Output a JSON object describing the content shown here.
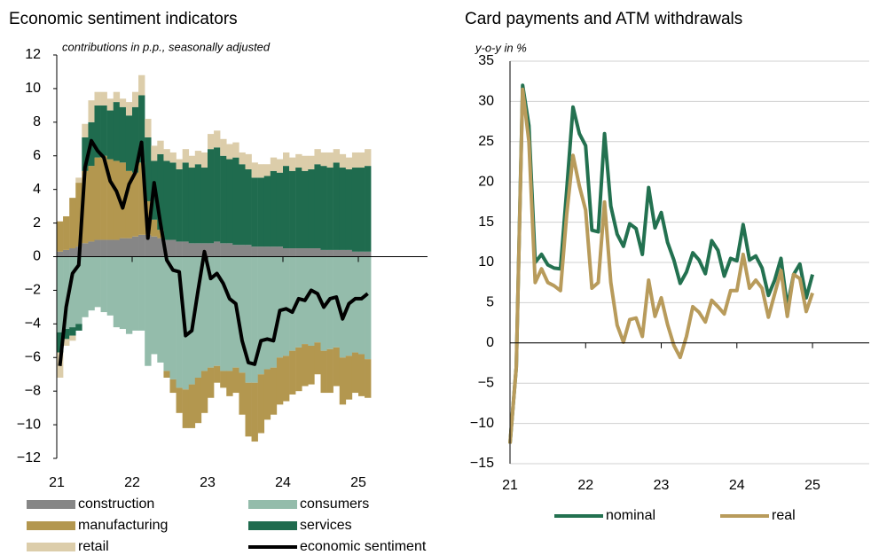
{
  "chart_data": [
    {
      "type": "bar",
      "stacked": true,
      "title": "Economic sentiment indicators",
      "subtitle": "contributions in p.p., seasonally adjusted",
      "x": [
        21,
        21.083,
        21.167,
        21.25,
        21.333,
        21.417,
        21.5,
        21.583,
        21.667,
        21.75,
        21.833,
        21.917,
        22,
        22.083,
        22.167,
        22.25,
        22.333,
        22.417,
        22.5,
        22.583,
        22.667,
        22.75,
        22.833,
        22.917,
        23,
        23.083,
        23.167,
        23.25,
        23.333,
        23.417,
        23.5,
        23.583,
        23.667,
        23.75,
        23.833,
        23.917,
        24,
        24.083,
        24.167,
        24.25,
        24.333,
        24.417,
        24.5,
        24.583,
        24.667,
        24.75,
        24.833,
        24.917,
        25,
        25.083
      ],
      "xlim": [
        21,
        26
      ],
      "xticks": [
        21,
        22,
        23,
        24,
        25
      ],
      "ylim": [
        -12,
        12
      ],
      "yticks": [
        {
          "value": -12,
          "label": "−12"
        },
        {
          "value": -10,
          "label": "−10"
        },
        {
          "value": -8,
          "label": "−8"
        },
        {
          "value": -6,
          "label": "−6"
        },
        {
          "value": -4,
          "label": "−4"
        },
        {
          "value": -2,
          "label": "−2"
        },
        0,
        2,
        4,
        6,
        8,
        10,
        12
      ],
      "legend": "bottom",
      "series": [
        {
          "name": "construction",
          "color": "#868686",
          "values": [
            0.3,
            0.4,
            0.5,
            0.6,
            0.8,
            0.9,
            1.0,
            1.0,
            1.0,
            1.0,
            1.1,
            1.1,
            1.2,
            1.3,
            1.3,
            1.2,
            1.1,
            1.0,
            1.0,
            0.9,
            0.9,
            0.8,
            0.8,
            0.8,
            0.8,
            0.9,
            0.8,
            0.8,
            0.7,
            0.7,
            0.7,
            0.6,
            0.6,
            0.6,
            0.6,
            0.6,
            0.5,
            0.5,
            0.5,
            0.5,
            0.5,
            0.5,
            0.4,
            0.4,
            0.4,
            0.4,
            0.4,
            0.3,
            0.3,
            0.3
          ]
        },
        {
          "name": "consumers",
          "color": "#94bcab",
          "values": [
            -4.5,
            -4.3,
            -4.2,
            -4.0,
            -3.6,
            -3.2,
            -3.0,
            -3.3,
            -3.5,
            -4.2,
            -4.3,
            -4.6,
            -4.4,
            -4.4,
            -6.5,
            -5.8,
            -6.3,
            -6.8,
            -7.3,
            -7.8,
            -7.9,
            -7.6,
            -7.2,
            -6.8,
            -6.6,
            -6.5,
            -6.8,
            -6.8,
            -6.6,
            -6.9,
            -7.5,
            -7.5,
            -7.0,
            -6.7,
            -6.6,
            -6.0,
            -5.9,
            -5.6,
            -5.4,
            -5.2,
            -5.3,
            -5.1,
            -5.6,
            -5.5,
            -5.4,
            -6.0,
            -5.9,
            -5.7,
            -5.8,
            -6.1
          ]
        },
        {
          "name": "manufacturing",
          "color": "#b3974f",
          "values": [
            1.8,
            2.0,
            3.0,
            3.8,
            4.3,
            4.5,
            4.9,
            5.0,
            4.8,
            4.7,
            4.5,
            4.0,
            3.8,
            4.3,
            2.0,
            1.0,
            0.5,
            -0.4,
            -0.8,
            -1.5,
            -2.3,
            -2.6,
            -2.7,
            -2.5,
            -1.8,
            -1.0,
            -1.0,
            -1.5,
            -1.5,
            -2.5,
            -3.2,
            -3.5,
            -3.5,
            -3.0,
            -2.8,
            -2.8,
            -2.7,
            -2.6,
            -2.6,
            -2.5,
            -2.3,
            -1.9,
            -2.5,
            -2.6,
            -2.3,
            -2.8,
            -2.6,
            -2.4,
            -2.5,
            -2.3
          ]
        },
        {
          "name": "services",
          "color": "#1f6b4e",
          "values": [
            -1.2,
            -0.6,
            -0.5,
            -0.4,
            2.0,
            2.6,
            3.1,
            3.0,
            2.9,
            3.5,
            3.3,
            3.3,
            3.9,
            4.0,
            3.8,
            3.5,
            4.5,
            4.7,
            4.6,
            4.3,
            4.7,
            4.5,
            4.7,
            4.5,
            5.6,
            5.6,
            5.2,
            5.0,
            5.2,
            4.8,
            4.5,
            4.1,
            4.1,
            4.2,
            4.5,
            4.4,
            4.9,
            4.6,
            4.8,
            4.6,
            4.7,
            5.0,
            5.0,
            4.9,
            5.2,
            4.9,
            4.8,
            5.0,
            5.0,
            5.1
          ]
        },
        {
          "name": "retail",
          "color": "#dccdaa",
          "values": [
            -1.5,
            -0.4,
            -0.3,
            0.3,
            0.8,
            1.3,
            0.8,
            0.8,
            0.7,
            0.6,
            0.5,
            0.8,
            0.9,
            1.2,
            1.1,
            0.9,
            0.8,
            0.7,
            0.6,
            0.6,
            0.8,
            0.7,
            0.8,
            0.9,
            0.9,
            1.0,
            1.0,
            0.9,
            0.9,
            0.7,
            0.9,
            0.9,
            0.8,
            0.7,
            0.8,
            0.8,
            0.8,
            0.8,
            0.8,
            0.9,
            0.8,
            0.9,
            0.8,
            0.9,
            0.8,
            0.8,
            0.7,
            0.9,
            0.9,
            1.0
          ]
        },
        {
          "name": "economic sentiment",
          "type": "line",
          "color": "#000000",
          "values": [
            -6.5,
            -3.0,
            -1.0,
            -0.5,
            5.3,
            6.9,
            6.3,
            5.9,
            4.5,
            3.9,
            2.9,
            4.3,
            5.0,
            6.8,
            1.1,
            4.4,
            2.0,
            -0.2,
            -0.8,
            -0.9,
            -4.7,
            -4.4,
            -2.0,
            0.3,
            -1.3,
            -1.0,
            -1.6,
            -2.5,
            -2.8,
            -5.0,
            -6.3,
            -6.4,
            -5.0,
            -4.9,
            -5.0,
            -3.2,
            -3.1,
            -3.3,
            -2.5,
            -2.6,
            -2.0,
            -2.2,
            -3.0,
            -2.5,
            -2.4,
            -3.7,
            -2.8,
            -2.5,
            -2.5,
            -2.2
          ]
        }
      ]
    },
    {
      "type": "line",
      "title": "Card payments and ATM withdrawals",
      "subtitle": "y-o-y in %",
      "x": [
        21,
        21.083,
        21.167,
        21.25,
        21.333,
        21.417,
        21.5,
        21.583,
        21.667,
        21.75,
        21.833,
        21.917,
        22,
        22.083,
        22.167,
        22.25,
        22.333,
        22.417,
        22.5,
        22.583,
        22.667,
        22.75,
        22.833,
        22.917,
        23,
        23.083,
        23.167,
        23.25,
        23.333,
        23.417,
        23.5,
        23.583,
        23.667,
        23.75,
        23.833,
        23.917,
        24,
        24.083,
        24.167,
        24.25,
        24.333,
        24.417,
        24.5,
        24.583,
        24.667,
        24.75,
        24.833,
        24.917,
        25
      ],
      "xlim": [
        21,
        25.75
      ],
      "xticks": [
        21,
        22,
        23,
        24,
        25
      ],
      "ylim": [
        -15,
        35
      ],
      "yticks": [
        {
          "value": -15,
          "label": "−15"
        },
        {
          "value": -10,
          "label": "−10"
        },
        {
          "value": -5,
          "label": "−5"
        },
        0,
        5,
        10,
        15,
        20,
        25,
        30,
        35
      ],
      "grid": true,
      "legend": "bottom",
      "series": [
        {
          "name": "nominal",
          "color": "#237150",
          "values": [
            -12.5,
            -3,
            32,
            27,
            10,
            11,
            9.7,
            9.3,
            9.2,
            19,
            29.3,
            26,
            24.5,
            14,
            13.8,
            26,
            17,
            13.5,
            12,
            14.8,
            14.2,
            11,
            19.3,
            14.3,
            16.2,
            12.5,
            10.3,
            7.4,
            8.8,
            11.2,
            10.3,
            8.6,
            12.7,
            11.5,
            8.3,
            10.5,
            10.2,
            14.7,
            10.3,
            10.8,
            9.3,
            5.9,
            7.8,
            10.5,
            4.5,
            8.5,
            9.8,
            5.6,
            8.5
          ]
        },
        {
          "name": "real",
          "color": "#b89b5b",
          "values": [
            -12.5,
            -3,
            31.5,
            25,
            7.5,
            9.2,
            7.5,
            7.1,
            6.5,
            16,
            23.3,
            19.5,
            16.5,
            6.8,
            7.5,
            17.5,
            7.5,
            2.2,
            0.1,
            2.9,
            3.1,
            0.8,
            7.8,
            3.3,
            5.6,
            2.3,
            -0.3,
            -1.8,
            0.8,
            4.5,
            3.8,
            2.6,
            5.3,
            4.5,
            3.6,
            6.5,
            6.5,
            11,
            6.8,
            7.8,
            6.8,
            3.2,
            6.1,
            9.0,
            3.3,
            8.5,
            8.0,
            3.9,
            6.2
          ]
        }
      ]
    }
  ]
}
